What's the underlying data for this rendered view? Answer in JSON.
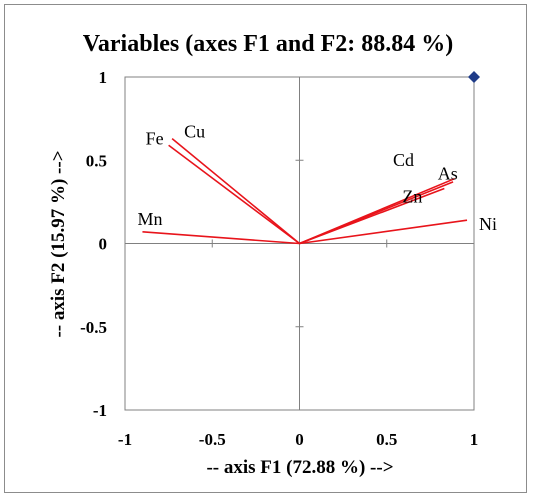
{
  "chart_data": {
    "type": "scatter",
    "title": "Variables (axes F1 and F2: 88.84 %)",
    "xlabel": "-- axis F1 (72.88 %) -->",
    "ylabel": "-- axis F2 (15.97 %) -->",
    "xlim": [
      -1,
      1
    ],
    "ylim": [
      -1,
      1
    ],
    "x_ticks": [
      "-1",
      "-0.5",
      "0",
      "0.5",
      "1"
    ],
    "y_ticks": [
      "1",
      "0.5",
      "0",
      "-0.5",
      "-1"
    ],
    "x_tick_values": [
      -1,
      -0.5,
      0,
      0.5,
      1
    ],
    "y_tick_values": [
      1,
      0.5,
      0,
      -0.5,
      -1
    ],
    "grid": false,
    "vector_color": "#e8141b",
    "marker_color": "#1f3c88",
    "marker_shape": "diamond",
    "marker": {
      "x": 1.0,
      "y": 1.0
    },
    "variables": [
      {
        "name": "Fe",
        "x": -0.75,
        "y": 0.59
      },
      {
        "name": "Cu",
        "x": -0.73,
        "y": 0.63
      },
      {
        "name": "Cd",
        "x": 0.88,
        "y": 0.37
      },
      {
        "name": "As",
        "x": 0.89,
        "y": 0.39
      },
      {
        "name": "Zn",
        "x": 0.83,
        "y": 0.33
      },
      {
        "name": "Ni",
        "x": 0.96,
        "y": 0.14
      },
      {
        "name": "Mn",
        "x": -0.9,
        "y": 0.07
      }
    ]
  }
}
